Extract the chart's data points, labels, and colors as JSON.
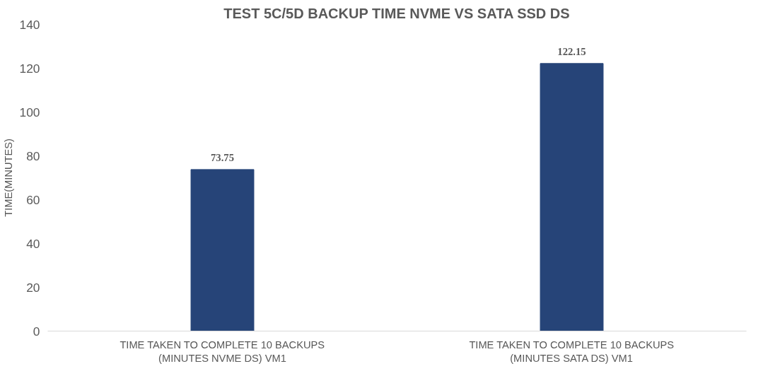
{
  "chart_data": {
    "type": "bar",
    "title": "TEST 5C/5D BACKUP TIME NVME VS SATA SSD DS",
    "ylabel": "TIME(MINUTES)",
    "categories": [
      "TIME TAKEN TO COMPLETE 10 BACKUPS\n(MINUTES NVME DS) VM1",
      "TIME TAKEN TO COMPLETE 10 BACKUPS\n(MINUTES SATA DS) VM1"
    ],
    "values": [
      73.75,
      122.15
    ],
    "color": "#264478",
    "ylim": [
      0,
      140
    ],
    "yticks": [
      0,
      20,
      40,
      60,
      80,
      100,
      120,
      140
    ],
    "grid": false,
    "data_labels": true
  }
}
